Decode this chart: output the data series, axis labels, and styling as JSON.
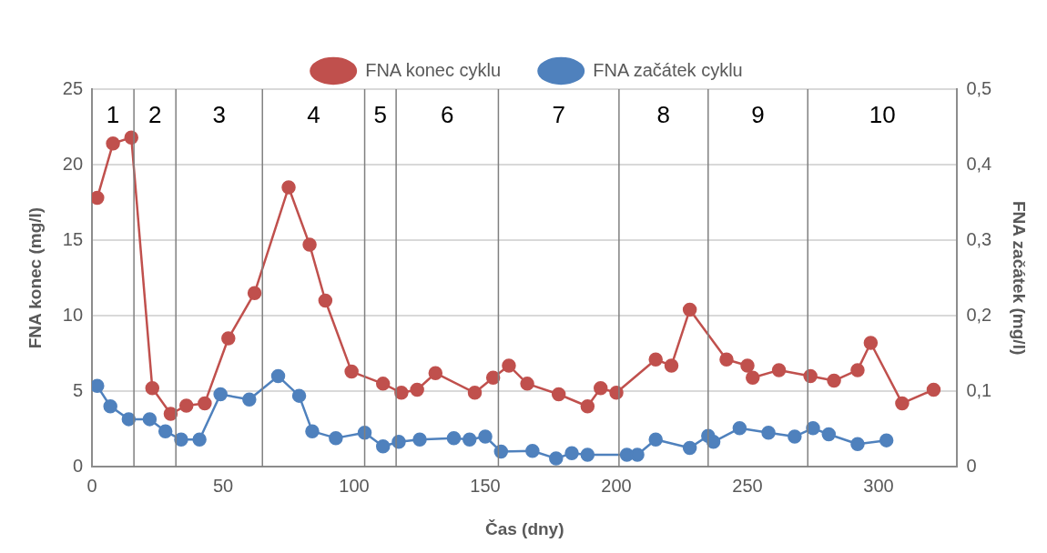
{
  "chart_data": {
    "type": "line",
    "xlabel": "Čas (dny)",
    "ylabel": "FNA konec (mg/l)",
    "y2label": "FNA začátek (mg/l)",
    "xlim": [
      0,
      330
    ],
    "xticks": [
      0,
      50,
      100,
      150,
      200,
      250,
      300
    ],
    "ylim": [
      0,
      25
    ],
    "yticks": [
      0,
      5,
      10,
      15,
      20,
      25
    ],
    "y2lim": [
      0,
      0.5
    ],
    "y2ticks": [
      0,
      {
        "value": 0.1,
        "label": "0,1"
      },
      {
        "value": 0.2,
        "label": "0,2"
      },
      {
        "value": 0.3,
        "label": "0,3"
      },
      {
        "value": 0.4,
        "label": "0,4"
      },
      {
        "value": 0.5,
        "label": "0,5"
      }
    ],
    "grid": "y",
    "legend": "top",
    "marker": "circle",
    "line_style": "solid",
    "series": [
      {
        "name": "FNA konec cyklu",
        "color": "#c0504d",
        "x": [
          2,
          8,
          15,
          23,
          30,
          36,
          43,
          52,
          62,
          75,
          83,
          89,
          99,
          111,
          118,
          124,
          131,
          146,
          153,
          159,
          166,
          178,
          189,
          194,
          200,
          215,
          221,
          228,
          242,
          250,
          252,
          262,
          274,
          283,
          292,
          297,
          309,
          321
        ],
        "values": [
          17.8,
          21.4,
          21.8,
          5.2,
          3.5,
          4.05,
          4.2,
          8.5,
          11.5,
          18.5,
          14.7,
          11.0,
          6.3,
          5.5,
          4.9,
          5.1,
          6.2,
          4.9,
          5.9,
          6.7,
          5.5,
          4.8,
          4.0,
          5.2,
          4.9,
          7.1,
          6.7,
          10.4,
          7.1,
          6.7,
          5.9,
          6.4,
          6.0,
          5.7,
          6.4,
          8.2,
          4.2,
          5.1
        ]
      },
      {
        "name": "FNA začátek cyklu",
        "color": "#4f81bd",
        "axis": "y2",
        "x": [
          2,
          7,
          14,
          22,
          28,
          34,
          41,
          49,
          60,
          71,
          79,
          84,
          93,
          104,
          111,
          117,
          125,
          138,
          144,
          150,
          156,
          168,
          177,
          183,
          189,
          204,
          208,
          215,
          228,
          235,
          237,
          247,
          258,
          268,
          275,
          281,
          292,
          303
        ],
        "values": [
          0.107,
          0.08,
          0.063,
          0.063,
          0.047,
          0.036,
          0.036,
          0.096,
          0.089,
          0.12,
          0.094,
          0.047,
          0.038,
          0.045,
          0.027,
          0.033,
          0.036,
          0.038,
          0.036,
          0.04,
          0.02,
          0.021,
          0.011,
          0.018,
          0.016,
          0.016,
          0.016,
          0.036,
          0.025,
          0.041,
          0.033,
          0.051,
          0.045,
          0.04,
          0.051,
          0.043,
          0.03,
          0.035
        ]
      }
    ],
    "ref_lines": [
      {
        "axis": "x",
        "value": 16,
        "color": "#808080"
      },
      {
        "axis": "x",
        "value": 32,
        "color": "#808080"
      },
      {
        "axis": "x",
        "value": 65,
        "color": "#808080"
      },
      {
        "axis": "x",
        "value": 104,
        "color": "#808080"
      },
      {
        "axis": "x",
        "value": 116,
        "color": "#808080"
      },
      {
        "axis": "x",
        "value": 155,
        "color": "#808080"
      },
      {
        "axis": "x",
        "value": 201,
        "color": "#808080"
      },
      {
        "axis": "x",
        "value": 235,
        "color": "#808080"
      },
      {
        "axis": "x",
        "value": 273,
        "color": "#808080"
      }
    ],
    "annotations": [
      "1",
      "2",
      "3",
      "4",
      "5",
      "6",
      "7",
      "8",
      "9",
      "10"
    ]
  }
}
